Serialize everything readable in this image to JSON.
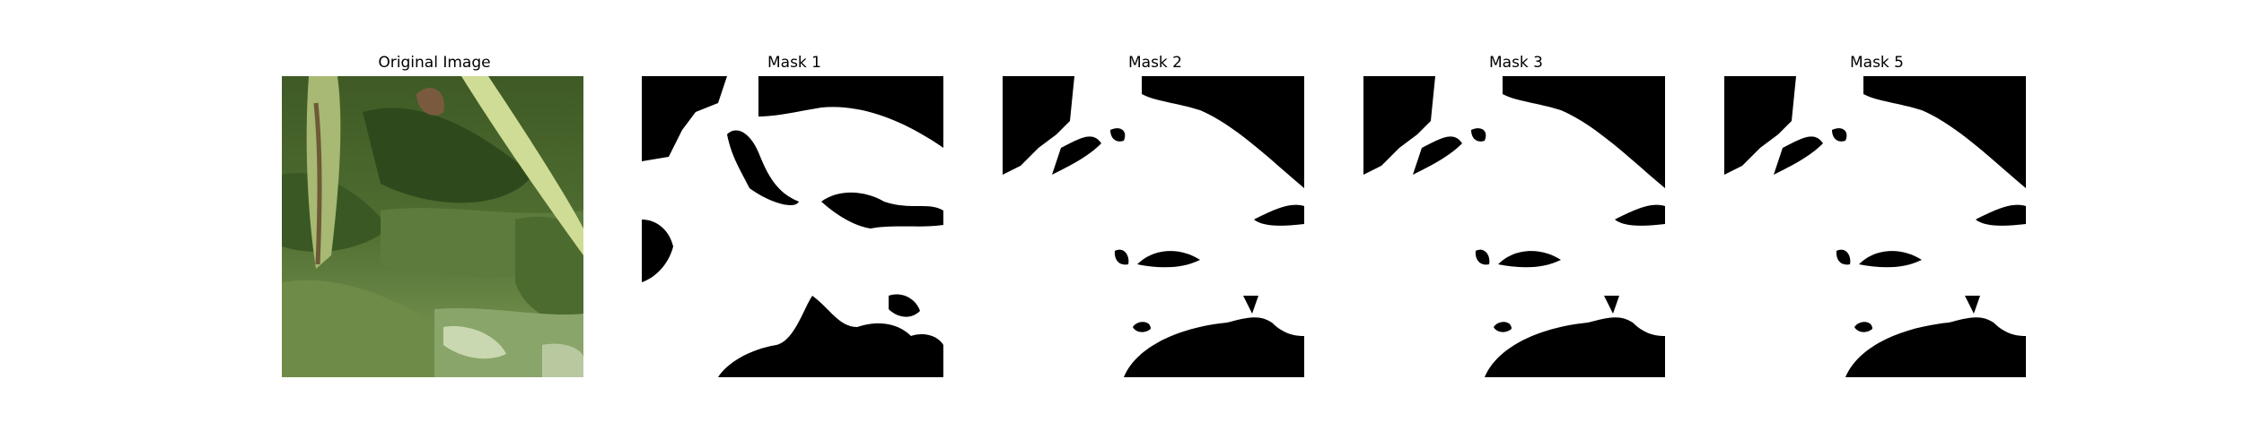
{
  "figure": {
    "panels": [
      {
        "title": "Original Image",
        "kind": "photo"
      },
      {
        "title": "Mask 1",
        "kind": "mask"
      },
      {
        "title": "Mask 2",
        "kind": "mask"
      },
      {
        "title": "Mask 3",
        "kind": "mask"
      },
      {
        "title": "Mask 5",
        "kind": "mask"
      }
    ]
  }
}
